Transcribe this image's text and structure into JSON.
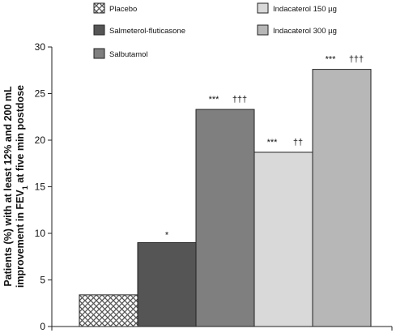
{
  "chart_data": {
    "type": "bar",
    "ylabel_line1": "Patients (%) with at least 12% and 200 mL",
    "ylabel_line2_pre": "improvement in FEV",
    "ylabel_line2_sub": "1",
    "ylabel_line2_post": " at five min postdose",
    "ylim": [
      0,
      30
    ],
    "yticks": [
      "0",
      "5",
      "10",
      "15",
      "20",
      "25",
      "30"
    ],
    "ytick_values": [
      0,
      5,
      10,
      15,
      20,
      25,
      30
    ],
    "legend_placement": "top",
    "bars": [
      {
        "name": "Placebo",
        "value": 3.4,
        "color": "#ffffff",
        "pattern": "crosshatch",
        "stars": "",
        "daggers": ""
      },
      {
        "name": "Salmeterol-fluticasone",
        "value": 9.0,
        "color": "#555555",
        "pattern": "solid",
        "stars": "*",
        "daggers": ""
      },
      {
        "name": "Salbutamol",
        "value": 23.3,
        "color": "#7f7f7f",
        "pattern": "solid",
        "stars": "***",
        "daggers": "†††"
      },
      {
        "name": "Indacaterol 150 µg",
        "value": 18.7,
        "color": "#d9d9d9",
        "pattern": "solid",
        "stars": "***",
        "daggers": "††"
      },
      {
        "name": "Indacaterol 300 µg",
        "value": 27.6,
        "color": "#b7b7b7",
        "pattern": "solid",
        "stars": "***",
        "daggers": "†††"
      }
    ]
  }
}
